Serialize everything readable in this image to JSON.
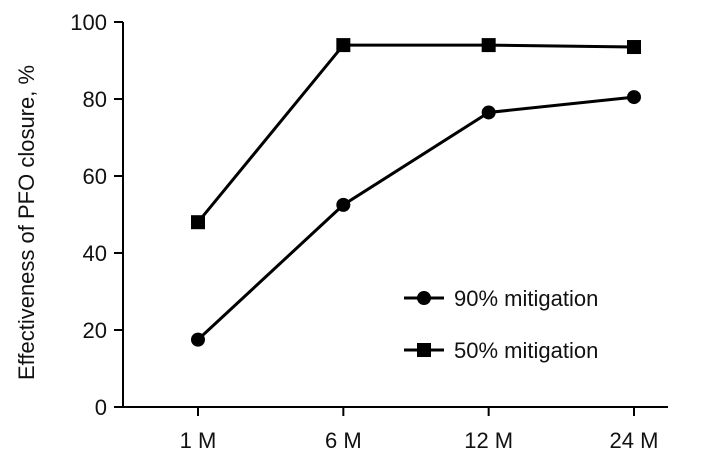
{
  "chart_data": {
    "type": "line",
    "title": "",
    "xlabel": "",
    "ylabel": "Effectiveness of PFO closure, %",
    "categories": [
      "1 M",
      "6 M",
      "12 M",
      "24 M"
    ],
    "ylim": [
      0,
      100
    ],
    "yticks": [
      0,
      20,
      40,
      60,
      80,
      100
    ],
    "grid": false,
    "legend_position": "bottom-right",
    "series": [
      {
        "name": "90% mitigation",
        "marker": "circle",
        "color": "#000000",
        "values": [
          17.5,
          52.5,
          76.5,
          80.5
        ]
      },
      {
        "name": "50% mitigation",
        "marker": "square",
        "color": "#000000",
        "values": [
          48,
          94,
          94,
          93.5
        ]
      }
    ]
  }
}
